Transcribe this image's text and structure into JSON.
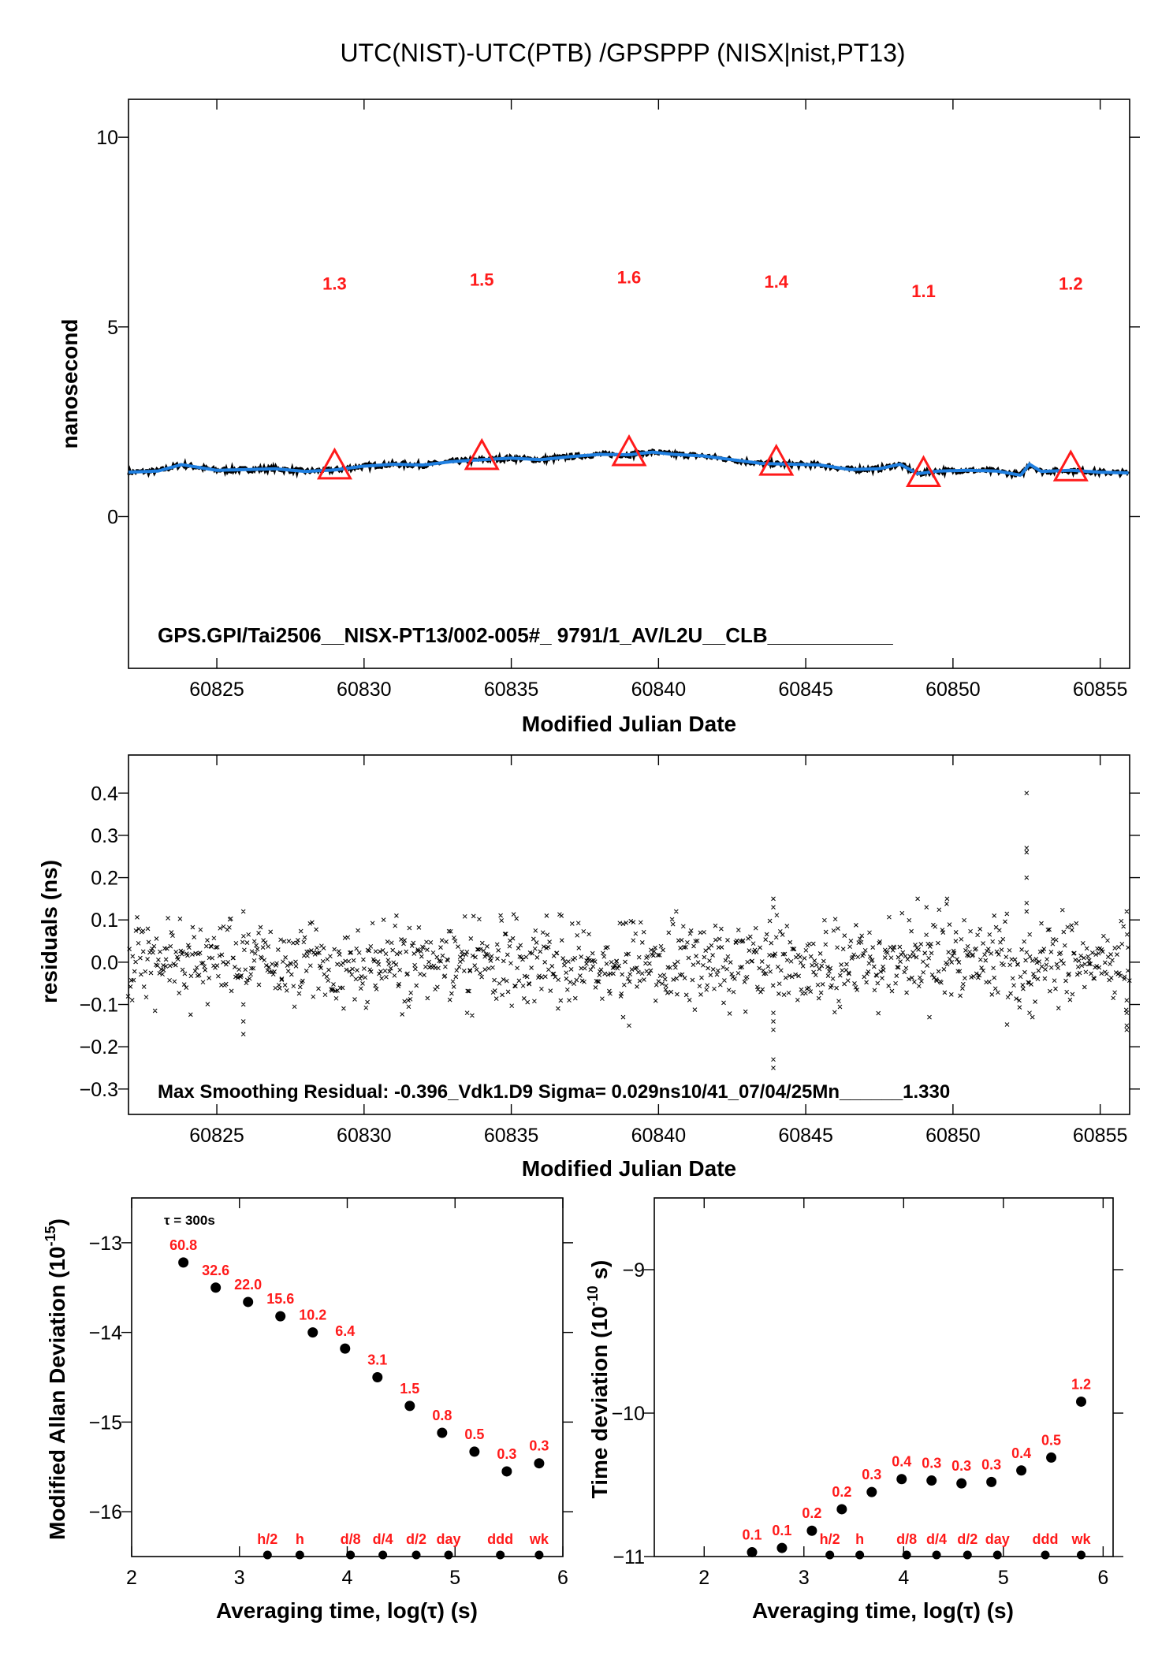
{
  "title": "UTC(NIST)-UTC(PTB)  /GPSPPP  (NISX|nist,PT13)",
  "colors": {
    "series": "#1f7fe0",
    "marker": "#ff1a1a",
    "points": "#000000"
  },
  "chart_data": [
    {
      "type": "line",
      "panel": "top",
      "xlabel": "Modified Julian Date",
      "ylabel": "nanosecond",
      "xlim": [
        60822,
        60856
      ],
      "ylim": [
        -4,
        11
      ],
      "xticks": [
        60825,
        60830,
        60835,
        60840,
        60845,
        60850,
        60855
      ],
      "yticks": [
        0,
        5,
        10
      ],
      "series": [
        {
          "x": [
            60822.0,
            60823.0,
            60823.8,
            60825.0,
            60826.0,
            60827.0,
            60828.0,
            60829.0,
            60830.0,
            60831.0,
            60832.0,
            60833.0,
            60834.0,
            60835.0,
            60836.0,
            60837.0,
            60838.0,
            60839.0,
            60839.8,
            60840.5,
            60841.5,
            60842.5,
            60843.5,
            60844.5,
            60845.5,
            60846.5,
            60847.5,
            60848.2,
            60848.8,
            60849.5,
            60850.5,
            60851.5,
            60852.3,
            60852.6,
            60853.0,
            60854.0,
            60855.0,
            60856.0
          ],
          "y": [
            1.17,
            1.2,
            1.37,
            1.22,
            1.24,
            1.26,
            1.19,
            1.23,
            1.33,
            1.38,
            1.36,
            1.45,
            1.5,
            1.54,
            1.5,
            1.58,
            1.64,
            1.63,
            1.7,
            1.64,
            1.6,
            1.5,
            1.4,
            1.38,
            1.36,
            1.24,
            1.26,
            1.38,
            1.13,
            1.2,
            1.22,
            1.2,
            1.09,
            1.38,
            1.19,
            1.22,
            1.17,
            1.15
          ]
        }
      ],
      "markers": [
        {
          "x": 60829,
          "y": 1.3,
          "label": "1.3"
        },
        {
          "x": 60834,
          "y": 1.55,
          "label": "1.5"
        },
        {
          "x": 60839,
          "y": 1.65,
          "label": "1.6"
        },
        {
          "x": 60844,
          "y": 1.4,
          "label": "1.4"
        },
        {
          "x": 60849,
          "y": 1.1,
          "label": "1.1"
        },
        {
          "x": 60854,
          "y": 1.25,
          "label": "1.2"
        }
      ],
      "marker_label_y": [
        6.15,
        6.25,
        6.32,
        6.2,
        5.95,
        6.15
      ],
      "annotation": "GPS.GPI/Tai2506__NISX-PT13/002-005#_  9791/1_AV/L2U__CLB___________"
    },
    {
      "type": "scatter",
      "panel": "middle",
      "xlabel": "Modified Julian Date",
      "ylabel": "residuals (ns)",
      "xlim": [
        60822,
        60856
      ],
      "ylim": [
        -0.36,
        0.49
      ],
      "xticks": [
        60825,
        60830,
        60835,
        60840,
        60845,
        60850,
        60855
      ],
      "xticklabels": [
        "60825",
        "60830",
        "60835",
        "60840",
        "60845",
        "60850",
        "60855"
      ],
      "yticks": [
        -0.3,
        -0.2,
        -0.1,
        0.0,
        0.1,
        0.2,
        0.3,
        0.4
      ],
      "yticklabels": [
        "−0.3",
        "−0.2",
        "−0.1",
        "0.0",
        "0.1",
        "0.2",
        "0.3",
        "0.4"
      ],
      "sigma": 0.029,
      "outliers": [
        {
          "x": 60825.9,
          "y": 0.12
        },
        {
          "x": 60825.9,
          "y": -0.1
        },
        {
          "x": 60825.9,
          "y": -0.14
        },
        {
          "x": 60825.9,
          "y": -0.17
        },
        {
          "x": 60831.1,
          "y": 0.11
        },
        {
          "x": 60831.5,
          "y": -0.09
        },
        {
          "x": 60833.5,
          "y": -0.12
        },
        {
          "x": 60836.2,
          "y": 0.11
        },
        {
          "x": 60838.8,
          "y": -0.13
        },
        {
          "x": 60839.0,
          "y": -0.15
        },
        {
          "x": 60840.6,
          "y": 0.12
        },
        {
          "x": 60843.9,
          "y": 0.15
        },
        {
          "x": 60843.9,
          "y": 0.13
        },
        {
          "x": 60843.9,
          "y": -0.12
        },
        {
          "x": 60843.9,
          "y": -0.14
        },
        {
          "x": 60843.9,
          "y": -0.16
        },
        {
          "x": 60843.9,
          "y": -0.23
        },
        {
          "x": 60843.9,
          "y": -0.25
        },
        {
          "x": 60848.8,
          "y": 0.15
        },
        {
          "x": 60849.1,
          "y": 0.13
        },
        {
          "x": 60849.2,
          "y": -0.13
        },
        {
          "x": 60849.8,
          "y": 0.15
        },
        {
          "x": 60851.4,
          "y": 0.11
        },
        {
          "x": 60852.5,
          "y": 0.4
        },
        {
          "x": 60852.5,
          "y": 0.27
        },
        {
          "x": 60852.5,
          "y": 0.26
        },
        {
          "x": 60852.5,
          "y": 0.2
        },
        {
          "x": 60852.5,
          "y": 0.14
        },
        {
          "x": 60852.5,
          "y": 0.12
        },
        {
          "x": 60852.6,
          "y": -0.12
        },
        {
          "x": 60852.7,
          "y": -0.13
        },
        {
          "x": 60855.9,
          "y": 0.12
        },
        {
          "x": 60855.9,
          "y": -0.09
        },
        {
          "x": 60855.9,
          "y": -0.12
        },
        {
          "x": 60855.9,
          "y": -0.15
        },
        {
          "x": 60855.9,
          "y": -0.16
        }
      ],
      "annotation": "Max Smoothing Residual: -0.396_Vdk1.D9  Sigma= 0.029ns10/41_07/04/25Mn______1.330"
    },
    {
      "type": "scatter",
      "panel": "bottom-left",
      "xlabel": "Averaging time, log(τ) (s)",
      "ylabel": "Modified Allan Deviation",
      "ylabel_unit": "(10",
      "ylabel_exp": "-15",
      "ylabel_end": ")",
      "xlim": [
        2,
        6
      ],
      "ylim": [
        -16.5,
        -12.5
      ],
      "xticks": [
        2,
        3,
        4,
        5,
        6
      ],
      "yticks": [
        -13,
        -14,
        -15,
        -16
      ],
      "tau_note": "τ = 300s",
      "points": [
        {
          "x": 2.48,
          "y": -13.22,
          "label": "60.8"
        },
        {
          "x": 2.78,
          "y": -13.5,
          "label": "32.6"
        },
        {
          "x": 3.08,
          "y": -13.66,
          "label": "22.0"
        },
        {
          "x": 3.38,
          "y": -13.82,
          "label": "15.6"
        },
        {
          "x": 3.68,
          "y": -14.0,
          "label": "10.2"
        },
        {
          "x": 3.98,
          "y": -14.18,
          "label": "6.4"
        },
        {
          "x": 4.28,
          "y": -14.5,
          "label": "3.1"
        },
        {
          "x": 4.58,
          "y": -14.82,
          "label": "1.5"
        },
        {
          "x": 4.88,
          "y": -15.12,
          "label": "0.8"
        },
        {
          "x": 5.18,
          "y": -15.33,
          "label": "0.5"
        },
        {
          "x": 5.48,
          "y": -15.55,
          "label": "0.3"
        },
        {
          "x": 5.78,
          "y": -15.46,
          "label": "0.3"
        }
      ],
      "time_markers": [
        {
          "x": 3.26,
          "label": "h/2"
        },
        {
          "x": 3.56,
          "label": "h"
        },
        {
          "x": 4.03,
          "label": "d/8"
        },
        {
          "x": 4.33,
          "label": "d/4"
        },
        {
          "x": 4.64,
          "label": "d/2"
        },
        {
          "x": 4.94,
          "label": "day"
        },
        {
          "x": 5.42,
          "label": "ddd"
        },
        {
          "x": 5.78,
          "label": "wk"
        }
      ]
    },
    {
      "type": "scatter",
      "panel": "bottom-right",
      "xlabel": "Averaging time, log(τ) (s)",
      "ylabel": "Time deviation",
      "ylabel_unit": "(10",
      "ylabel_exp": "-10",
      "ylabel_end": " s)",
      "xlim": [
        1.5,
        6.1
      ],
      "ylim": [
        -11,
        -8.5
      ],
      "xticks": [
        2,
        3,
        4,
        5,
        6
      ],
      "yticks": [
        -9,
        -10,
        -11
      ],
      "points": [
        {
          "x": 2.48,
          "y": -10.97,
          "label": "0.1"
        },
        {
          "x": 2.78,
          "y": -10.94,
          "label": "0.1"
        },
        {
          "x": 3.08,
          "y": -10.82,
          "label": "0.2"
        },
        {
          "x": 3.38,
          "y": -10.67,
          "label": "0.2"
        },
        {
          "x": 3.68,
          "y": -10.55,
          "label": "0.3"
        },
        {
          "x": 3.98,
          "y": -10.46,
          "label": "0.4"
        },
        {
          "x": 4.28,
          "y": -10.47,
          "label": "0.3"
        },
        {
          "x": 4.58,
          "y": -10.49,
          "label": "0.3"
        },
        {
          "x": 4.88,
          "y": -10.48,
          "label": "0.3"
        },
        {
          "x": 5.18,
          "y": -10.4,
          "label": "0.4"
        },
        {
          "x": 5.48,
          "y": -10.31,
          "label": "0.5"
        },
        {
          "x": 5.78,
          "y": -9.92,
          "label": "1.2"
        }
      ],
      "time_markers": [
        {
          "x": 3.26,
          "label": "h/2"
        },
        {
          "x": 3.56,
          "label": "h"
        },
        {
          "x": 4.03,
          "label": "d/8"
        },
        {
          "x": 4.33,
          "label": "d/4"
        },
        {
          "x": 4.64,
          "label": "d/2"
        },
        {
          "x": 4.94,
          "label": "day"
        },
        {
          "x": 5.42,
          "label": "ddd"
        },
        {
          "x": 5.78,
          "label": "wk"
        }
      ]
    }
  ]
}
